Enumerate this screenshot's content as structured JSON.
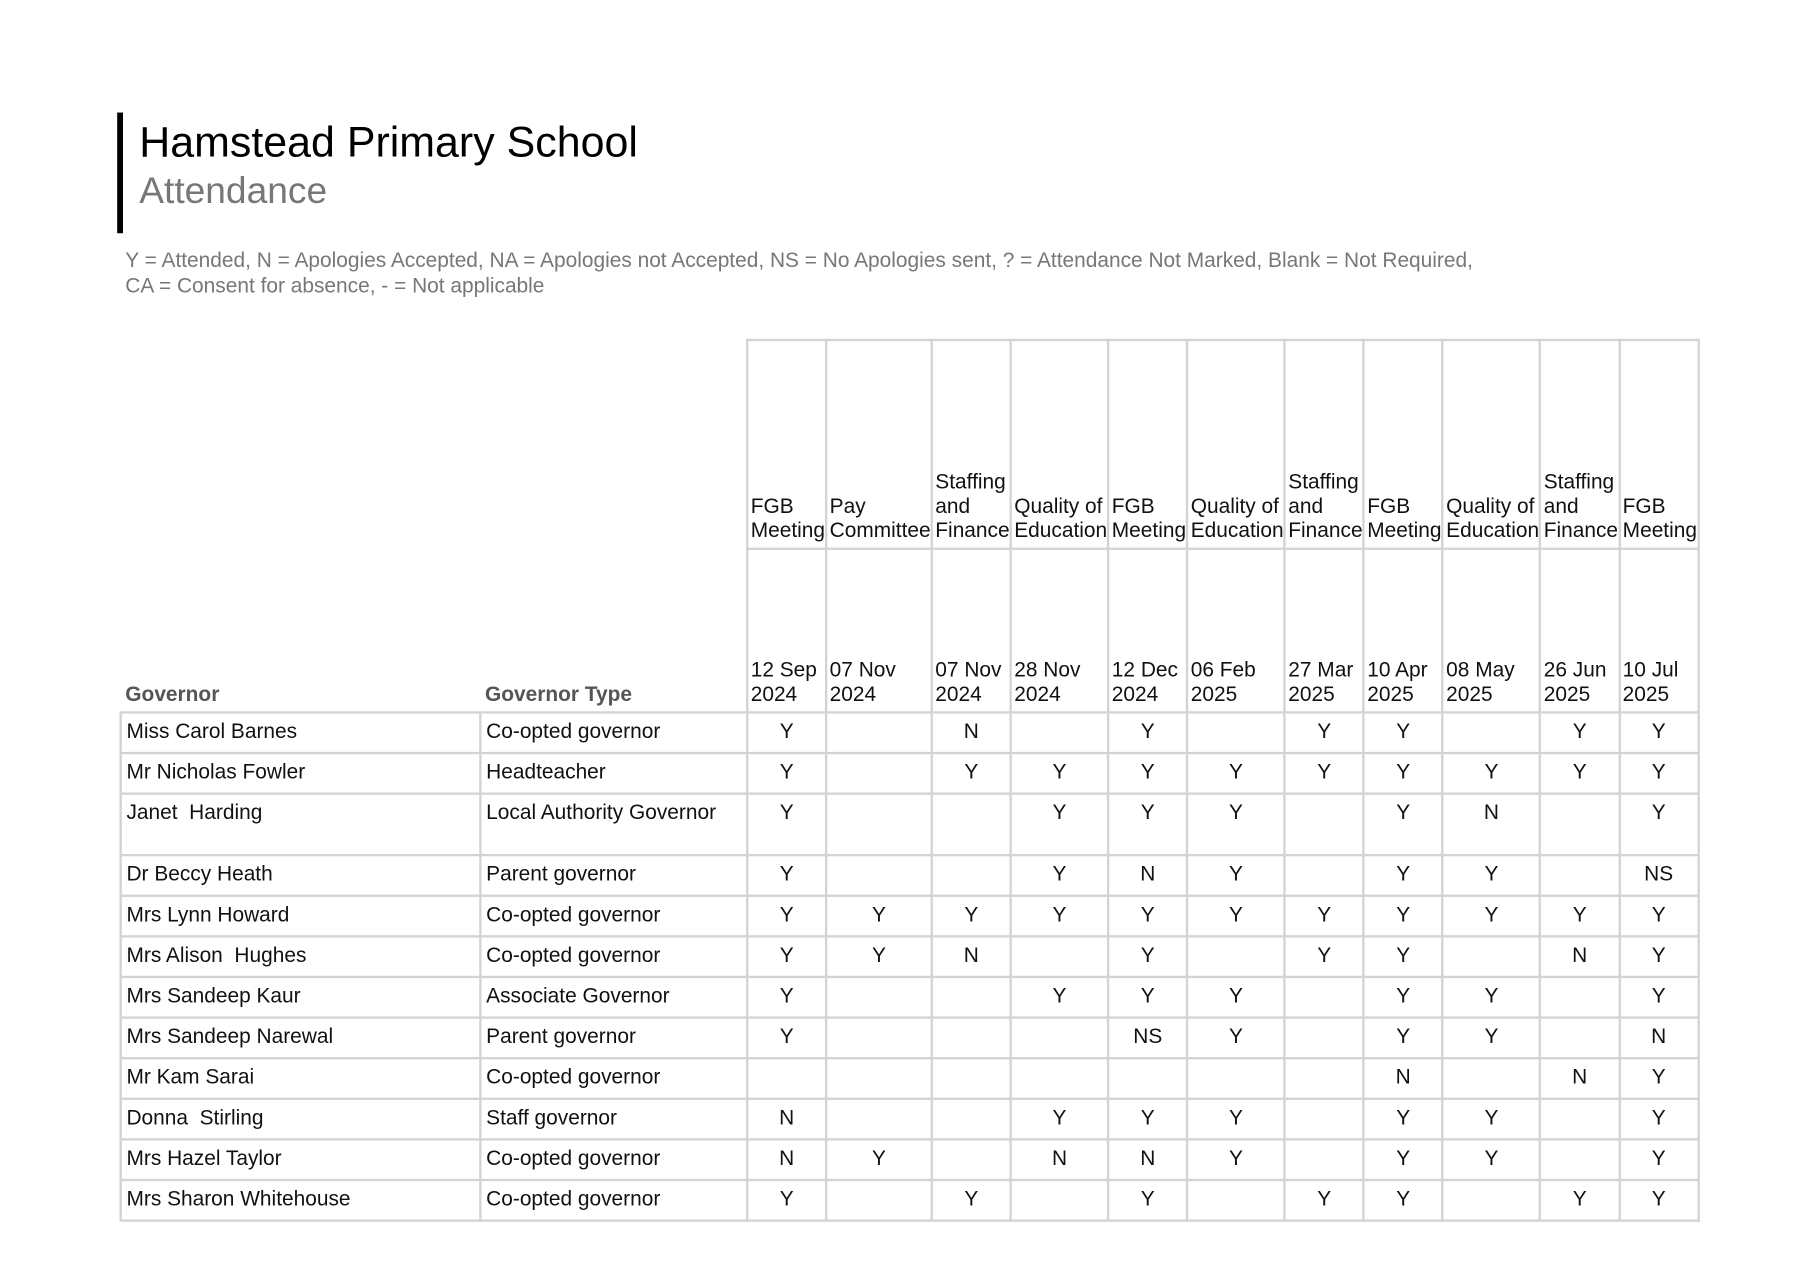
{
  "header": {
    "title": "Hamstead Primary School",
    "subtitle": "Attendance"
  },
  "legend": [
    "Y = Attended, N = Apologies Accepted, NA = Apologies not Accepted, NS = No Apologies sent, ? = Attendance Not Marked, Blank = Not Required,",
    "CA = Consent for absence, - = Not applicable"
  ],
  "table": {
    "columns": [
      "Governor",
      "Governor Type"
    ],
    "meetings": [
      {
        "name": "FGB Meeting",
        "date": "12 Sep 2024"
      },
      {
        "name": "Pay Committee",
        "date": "07 Nov 2024"
      },
      {
        "name": "Staffing and Finance",
        "date": "07 Nov 2024"
      },
      {
        "name": "Quality of Education",
        "date": "28 Nov 2024"
      },
      {
        "name": "FGB Meeting",
        "date": "12 Dec 2024"
      },
      {
        "name": "Quality of Education",
        "date": "06 Feb 2025"
      },
      {
        "name": "Staffing and Finance",
        "date": "27 Mar 2025"
      },
      {
        "name": "FGB Meeting",
        "date": "10 Apr 2025"
      },
      {
        "name": "Quality of Education",
        "date": "08 May 2025"
      },
      {
        "name": "Staffing and Finance",
        "date": "26 Jun 2025"
      },
      {
        "name": "FGB Meeting",
        "date": "10 Jul 2025"
      }
    ],
    "rows": [
      [
        "Miss Carol Barnes",
        "Co-opted governor",
        "Y",
        null,
        "N",
        null,
        "Y",
        null,
        "Y",
        "Y",
        null,
        "Y",
        "Y"
      ],
      [
        "Mr Nicholas Fowler",
        "Headteacher",
        "Y",
        null,
        "Y",
        "Y",
        "Y",
        "Y",
        "Y",
        "Y",
        "Y",
        "Y",
        "Y"
      ],
      [
        "Janet  Harding",
        "Local Authority Governor",
        "Y",
        null,
        null,
        "Y",
        "Y",
        "Y",
        null,
        "Y",
        "N",
        null,
        "Y"
      ],
      [
        "Dr Beccy Heath",
        "Parent governor",
        "Y",
        null,
        null,
        "Y",
        "N",
        "Y",
        null,
        "Y",
        "Y",
        null,
        "NS"
      ],
      [
        "Mrs Lynn Howard",
        "Co-opted governor",
        "Y",
        "Y",
        "Y",
        "Y",
        "Y",
        "Y",
        "Y",
        "Y",
        "Y",
        "Y",
        "Y"
      ],
      [
        "Mrs Alison  Hughes",
        "Co-opted governor",
        "Y",
        "Y",
        "N",
        null,
        "Y",
        null,
        "Y",
        "Y",
        null,
        "N",
        "Y"
      ],
      [
        "Mrs Sandeep Kaur",
        "Associate Governor",
        "Y",
        null,
        null,
        "Y",
        "Y",
        "Y",
        null,
        "Y",
        "Y",
        null,
        "Y"
      ],
      [
        "Mrs Sandeep Narewal",
        "Parent governor",
        "Y",
        null,
        null,
        null,
        "NS",
        "Y",
        null,
        "Y",
        "Y",
        null,
        "N"
      ],
      [
        "Mr Kam Sarai",
        "Co-opted governor",
        null,
        null,
        null,
        null,
        null,
        null,
        null,
        "N",
        null,
        "N",
        "Y"
      ],
      [
        "Donna  Stirling",
        "Staff governor",
        "N",
        null,
        null,
        "Y",
        "Y",
        "Y",
        null,
        "Y",
        "Y",
        null,
        "Y"
      ],
      [
        "Mrs Hazel Taylor",
        "Co-opted governor",
        "N",
        "Y",
        null,
        "N",
        "N",
        "Y",
        null,
        "Y",
        "Y",
        null,
        "Y"
      ],
      [
        "Mrs Sharon Whitehouse",
        "Co-opted governor",
        "Y",
        null,
        "Y",
        null,
        "Y",
        null,
        "Y",
        "Y",
        null,
        "Y",
        "Y"
      ]
    ]
  }
}
